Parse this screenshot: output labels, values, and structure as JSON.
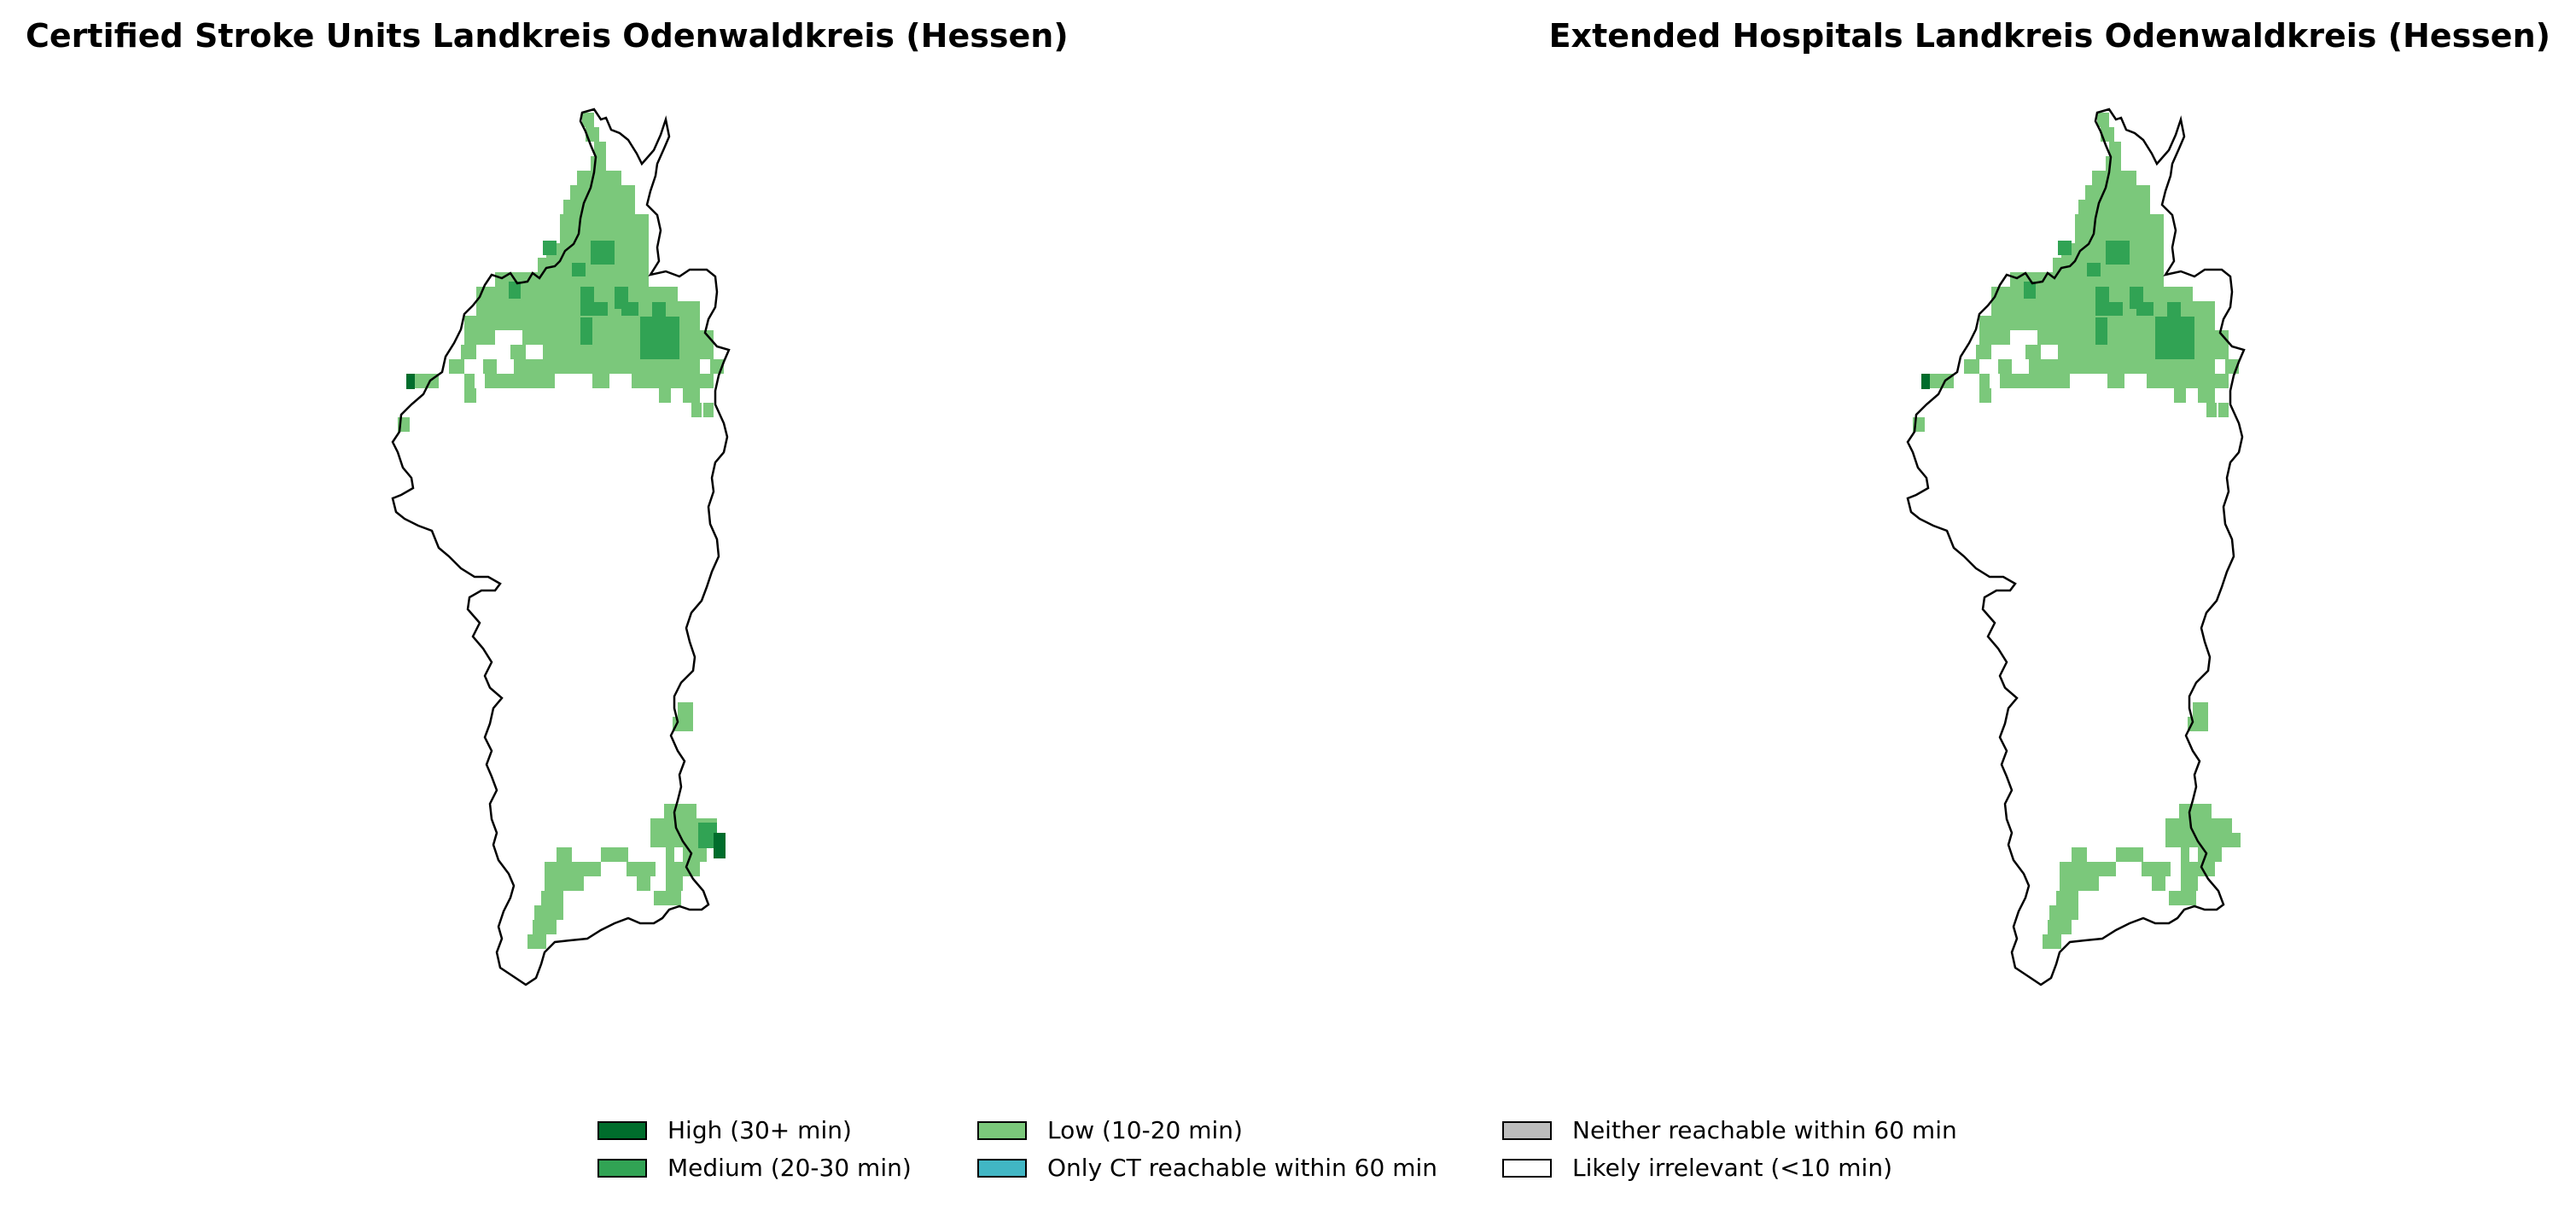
{
  "maps": [
    {
      "title": "Certified Stroke Units Landkreis Odenwaldkreis (Hessen)"
    },
    {
      "title": "Extended Hospitals Landkreis Odenwaldkreis (Hessen)"
    }
  ],
  "colors": {
    "high": "#006d2c",
    "medium": "#31a354",
    "low": "#7bc87b",
    "ct_only": "#41b6c4",
    "neither": "#bdbdbd",
    "irrelevant": "#ffffff",
    "boundary": "#000000"
  },
  "legend": [
    {
      "key": "high",
      "label": "High (30+ min)"
    },
    {
      "key": "medium",
      "label": "Medium (20-30 min)"
    },
    {
      "key": "low",
      "label": "Low (10-20 min)"
    },
    {
      "key": "ct_only",
      "label": "Only CT reachable within 60 min"
    },
    {
      "key": "neither",
      "label": "Neither reachable within 60 min"
    },
    {
      "key": "irrelevant",
      "label": "Likely irrelevant (<10 min)"
    }
  ]
}
